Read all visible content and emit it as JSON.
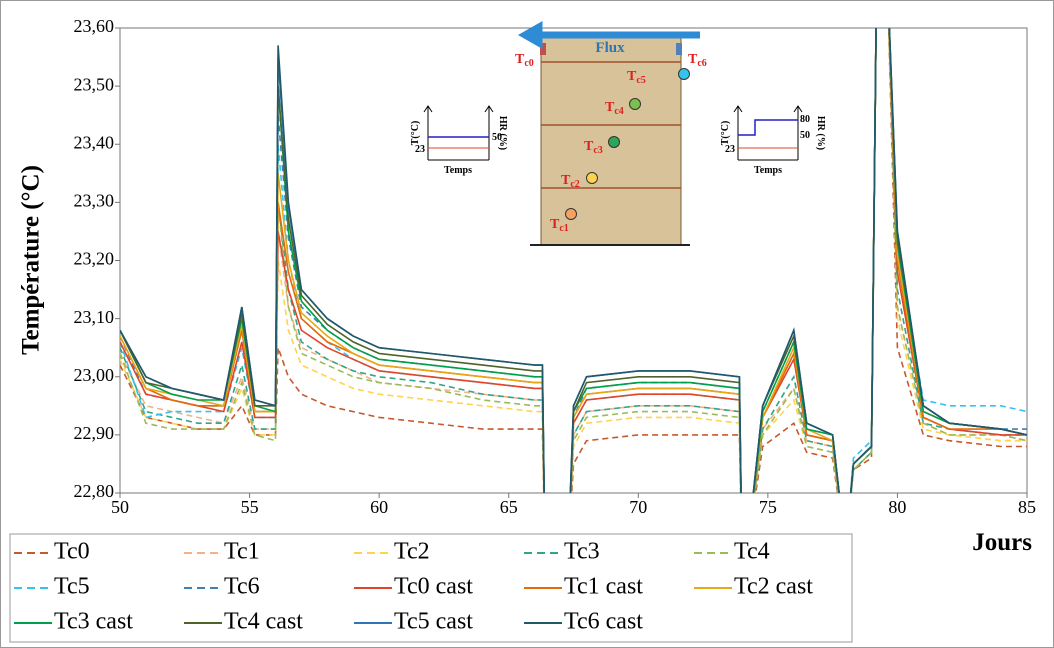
{
  "chart_data": {
    "type": "line",
    "ylabel": "Température (°C)",
    "xlabel": "Jours",
    "xlim": [
      50,
      85
    ],
    "xticks": [
      50,
      55,
      60,
      65,
      70,
      75,
      80,
      85
    ],
    "ylim": [
      22.8,
      23.6
    ],
    "yticks": [
      {
        "value": 22.8,
        "label": "22,80"
      },
      {
        "value": 22.9,
        "label": "22,90"
      },
      {
        "value": 23.0,
        "label": "23,00"
      },
      {
        "value": 23.1,
        "label": "23,10"
      },
      {
        "value": 23.2,
        "label": "23,20"
      },
      {
        "value": 23.3,
        "label": "23,30"
      },
      {
        "value": 23.4,
        "label": "23,40"
      },
      {
        "value": 23.5,
        "label": "23,50"
      },
      {
        "value": 23.6,
        "label": "23,60"
      }
    ],
    "grid": false,
    "x": [
      50,
      51,
      52,
      53,
      54,
      54.7,
      55.2,
      56,
      56.1,
      56.5,
      57,
      58,
      59,
      60,
      62,
      64,
      66,
      66.3,
      66.4,
      67.3,
      67.5,
      68,
      70,
      72,
      73.9,
      74,
      74.2,
      74.8,
      76,
      76.5,
      77.5,
      78,
      78.3,
      79,
      79.2,
      79.6,
      80,
      81,
      82,
      84,
      85
    ],
    "series": [
      {
        "name": "Tc0",
        "color": "#c65a2e",
        "dashed": true,
        "values": [
          23.02,
          22.93,
          22.92,
          22.91,
          22.91,
          22.95,
          22.9,
          22.9,
          23.05,
          23.0,
          22.97,
          22.95,
          22.94,
          22.93,
          22.92,
          22.91,
          22.91,
          22.91,
          22.7,
          22.7,
          22.85,
          22.89,
          22.9,
          22.9,
          22.9,
          22.7,
          22.7,
          22.88,
          22.92,
          22.87,
          22.86,
          22.7,
          22.84,
          22.86,
          23.7,
          23.7,
          23.05,
          22.9,
          22.89,
          22.88,
          22.88
        ]
      },
      {
        "name": "Tc1",
        "color": "#f4b183",
        "dashed": true,
        "values": [
          23.04,
          22.95,
          22.94,
          22.93,
          22.92,
          23.0,
          22.91,
          22.91,
          23.25,
          23.12,
          23.05,
          23.03,
          23.01,
          22.99,
          22.98,
          22.97,
          22.96,
          22.96,
          22.7,
          22.7,
          22.9,
          22.94,
          22.95,
          22.95,
          22.94,
          22.7,
          22.7,
          22.91,
          22.98,
          22.89,
          22.88,
          22.7,
          22.84,
          22.87,
          23.7,
          23.7,
          23.12,
          22.92,
          22.9,
          22.9,
          22.89
        ]
      },
      {
        "name": "Tc2",
        "color": "#ffd34d",
        "dashed": true,
        "values": [
          23.03,
          22.93,
          22.92,
          22.91,
          22.91,
          22.98,
          22.9,
          22.9,
          23.2,
          23.08,
          23.02,
          23.0,
          22.98,
          22.97,
          22.96,
          22.95,
          22.94,
          22.94,
          22.7,
          22.7,
          22.88,
          22.92,
          22.93,
          22.93,
          22.92,
          22.7,
          22.7,
          22.9,
          22.96,
          22.88,
          22.87,
          22.7,
          22.84,
          22.87,
          23.7,
          23.7,
          23.1,
          22.91,
          22.9,
          22.89,
          22.89
        ]
      },
      {
        "name": "Tc3",
        "color": "#2fa58a",
        "dashed": true,
        "values": [
          23.05,
          22.94,
          22.93,
          22.92,
          22.92,
          23.02,
          22.91,
          22.91,
          23.3,
          23.15,
          23.06,
          23.03,
          23.01,
          23.0,
          22.99,
          22.97,
          22.96,
          22.96,
          22.7,
          22.7,
          22.9,
          22.94,
          22.95,
          22.95,
          22.94,
          22.7,
          22.7,
          22.91,
          23.0,
          22.89,
          22.88,
          22.7,
          22.84,
          22.87,
          23.7,
          23.7,
          23.15,
          22.92,
          22.91,
          22.9,
          22.9
        ]
      },
      {
        "name": "Tc4",
        "color": "#9bbb59",
        "dashed": true,
        "values": [
          23.04,
          22.92,
          22.91,
          22.91,
          22.91,
          22.99,
          22.9,
          22.89,
          23.3,
          23.12,
          23.04,
          23.02,
          23.0,
          22.99,
          22.98,
          22.96,
          22.95,
          22.95,
          22.7,
          22.7,
          22.89,
          22.93,
          22.94,
          22.94,
          22.93,
          22.7,
          22.7,
          22.9,
          22.98,
          22.88,
          22.87,
          22.7,
          22.84,
          22.87,
          23.7,
          23.7,
          23.12,
          22.92,
          22.9,
          22.9,
          22.89
        ]
      },
      {
        "name": "Tc5",
        "color": "#33c3f0",
        "dashed": true,
        "values": [
          23.06,
          22.93,
          22.94,
          22.94,
          22.94,
          23.05,
          22.93,
          22.93,
          23.4,
          23.2,
          23.1,
          23.06,
          23.03,
          23.01,
          23.0,
          22.99,
          22.98,
          22.98,
          22.7,
          22.7,
          22.92,
          22.96,
          22.97,
          22.97,
          22.96,
          22.7,
          22.7,
          22.93,
          23.04,
          22.91,
          22.9,
          22.7,
          22.86,
          22.89,
          23.7,
          23.7,
          23.22,
          22.96,
          22.95,
          22.95,
          22.94
        ]
      },
      {
        "name": "Tc6",
        "color": "#3f7fb5",
        "dashed": true,
        "values": [
          23.07,
          22.97,
          22.96,
          22.95,
          22.95,
          23.08,
          22.94,
          22.94,
          23.45,
          23.24,
          23.12,
          23.08,
          23.05,
          23.03,
          23.02,
          23.01,
          23.0,
          23.0,
          22.7,
          22.7,
          22.93,
          22.98,
          22.99,
          22.99,
          22.98,
          22.7,
          22.7,
          22.94,
          23.06,
          22.91,
          22.9,
          22.7,
          22.85,
          22.88,
          23.7,
          23.7,
          23.22,
          22.94,
          22.92,
          22.91,
          22.91
        ]
      },
      {
        "name": "Tc0 cast",
        "color": "#e0452b",
        "dashed": false,
        "values": [
          23.06,
          22.97,
          22.96,
          22.95,
          22.94,
          23.06,
          22.93,
          22.93,
          23.25,
          23.15,
          23.08,
          23.05,
          23.03,
          23.01,
          23.0,
          22.99,
          22.98,
          22.98,
          22.7,
          22.7,
          22.92,
          22.96,
          22.97,
          22.97,
          22.96,
          22.7,
          22.7,
          22.93,
          23.03,
          22.9,
          22.89,
          22.7,
          22.85,
          22.88,
          23.7,
          23.7,
          23.18,
          22.93,
          22.91,
          22.9,
          22.9
        ]
      },
      {
        "name": "Tc1 cast",
        "color": "#e36c0a",
        "dashed": false,
        "values": [
          23.07,
          22.98,
          22.96,
          22.95,
          22.95,
          23.08,
          22.94,
          22.94,
          23.3,
          23.18,
          23.1,
          23.06,
          23.04,
          23.02,
          23.01,
          23.0,
          22.99,
          22.99,
          22.7,
          22.7,
          22.93,
          22.97,
          22.98,
          22.98,
          22.97,
          22.7,
          22.7,
          22.93,
          23.04,
          22.9,
          22.89,
          22.7,
          22.85,
          22.88,
          23.7,
          23.7,
          23.2,
          22.93,
          22.91,
          22.91,
          22.9
        ]
      },
      {
        "name": "Tc2 cast",
        "color": "#e6a817",
        "dashed": false,
        "values": [
          23.07,
          22.98,
          22.97,
          22.96,
          22.95,
          23.09,
          22.94,
          22.94,
          23.35,
          23.2,
          23.11,
          23.07,
          23.04,
          23.02,
          23.01,
          23.0,
          22.99,
          22.99,
          22.7,
          22.7,
          22.93,
          22.97,
          22.98,
          22.98,
          22.97,
          22.7,
          22.7,
          22.93,
          23.05,
          22.91,
          22.89,
          22.7,
          22.85,
          22.88,
          23.7,
          23.7,
          23.21,
          22.94,
          22.92,
          22.91,
          22.9
        ]
      },
      {
        "name": "Tc3 cast",
        "color": "#00a04a",
        "dashed": false,
        "values": [
          23.08,
          22.99,
          22.97,
          22.96,
          22.96,
          23.1,
          22.95,
          22.94,
          23.5,
          23.25,
          23.13,
          23.08,
          23.05,
          23.03,
          23.02,
          23.01,
          23.0,
          23.0,
          22.7,
          22.7,
          22.94,
          22.98,
          22.99,
          22.99,
          22.98,
          22.7,
          22.7,
          22.94,
          23.06,
          22.91,
          22.9,
          22.7,
          22.85,
          22.88,
          23.7,
          23.7,
          23.23,
          22.94,
          22.92,
          22.91,
          22.9
        ]
      },
      {
        "name": "Tc4 cast",
        "color": "#4f6228",
        "dashed": false,
        "values": [
          23.08,
          22.99,
          22.98,
          22.97,
          22.96,
          23.11,
          22.95,
          22.95,
          23.5,
          23.27,
          23.14,
          23.09,
          23.06,
          23.04,
          23.03,
          23.02,
          23.01,
          23.01,
          22.7,
          22.7,
          22.94,
          22.99,
          23.0,
          23.0,
          22.99,
          22.7,
          22.7,
          22.95,
          23.07,
          22.92,
          22.9,
          22.7,
          22.85,
          22.88,
          23.7,
          23.7,
          23.24,
          22.95,
          22.92,
          22.91,
          22.9
        ]
      },
      {
        "name": "Tc5 cast",
        "color": "#2e75b6",
        "dashed": false,
        "values": [
          23.08,
          23.0,
          22.98,
          22.97,
          22.96,
          23.12,
          22.96,
          22.95,
          23.55,
          23.29,
          23.15,
          23.1,
          23.07,
          23.05,
          23.04,
          23.03,
          23.02,
          23.02,
          22.7,
          22.7,
          22.95,
          23.0,
          23.01,
          23.01,
          23.0,
          22.7,
          22.7,
          22.95,
          23.08,
          22.92,
          22.9,
          22.7,
          22.85,
          22.88,
          23.7,
          23.7,
          23.25,
          22.95,
          22.92,
          22.91,
          22.9
        ]
      },
      {
        "name": "Tc6 cast",
        "color": "#215968",
        "dashed": false,
        "values": [
          23.08,
          23.0,
          22.98,
          22.97,
          22.96,
          23.12,
          22.96,
          22.95,
          23.57,
          23.3,
          23.15,
          23.1,
          23.07,
          23.05,
          23.04,
          23.03,
          23.02,
          23.02,
          22.7,
          22.7,
          22.95,
          23.0,
          23.01,
          23.01,
          23.0,
          22.7,
          22.7,
          22.95,
          23.08,
          22.92,
          22.9,
          22.7,
          22.85,
          22.88,
          23.7,
          23.7,
          23.25,
          22.95,
          22.92,
          22.91,
          22.9
        ]
      }
    ],
    "inset": {
      "flux": "Flux",
      "sensors": [
        {
          "base": "T",
          "sub": "c0"
        },
        {
          "base": "T",
          "sub": "c6"
        },
        {
          "base": "T",
          "sub": "c5"
        },
        {
          "base": "T",
          "sub": "c4"
        },
        {
          "base": "T",
          "sub": "c3"
        },
        {
          "base": "T",
          "sub": "c2"
        },
        {
          "base": "T",
          "sub": "c1"
        }
      ],
      "left_graph": {
        "y1": "T(°C)",
        "y2": "HR (%)",
        "t": "23",
        "hr": "50",
        "x": "Temps"
      },
      "right_graph": {
        "y1": "T(°C)",
        "y2": "HR (%)",
        "t": "23",
        "hr1": "50",
        "hr2": "80",
        "x": "Temps"
      }
    }
  }
}
